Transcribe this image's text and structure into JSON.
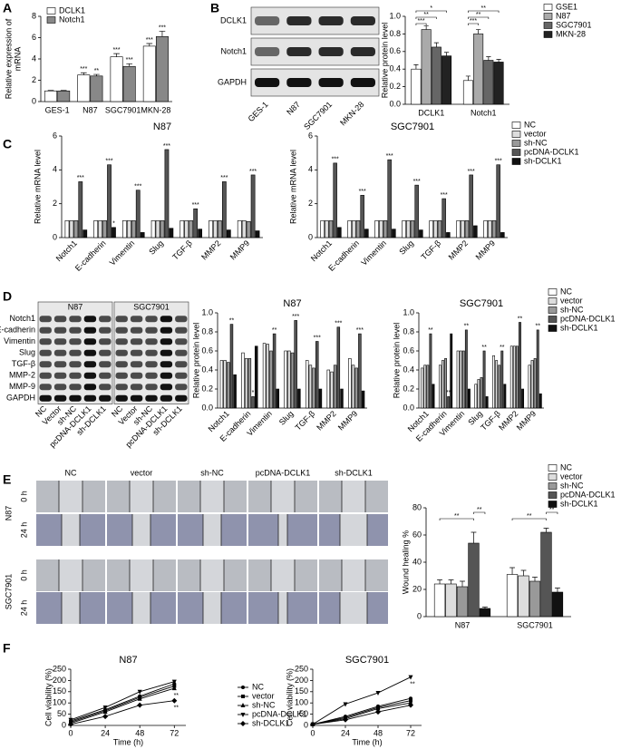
{
  "panels": [
    "A",
    "B",
    "C",
    "D",
    "E",
    "F"
  ],
  "blot_b": {
    "rows": [
      "DCLK1",
      "Notch1",
      "GAPDH"
    ],
    "lanes": [
      "GES-1",
      "N87",
      "SGC7901",
      "MKN-28"
    ]
  },
  "blot_d": {
    "groups": [
      "N87",
      "SGC7901"
    ],
    "rows": [
      "Notch1",
      "E-cadherin",
      "Vimentin",
      "Slug",
      "TGF-β",
      "MMP-2",
      "MMP-9",
      "GAPDH"
    ],
    "lanes": [
      "NC",
      "Vector",
      "sh-NC",
      "pcDNA-DCLK1",
      "sh-DCLK1",
      "NC",
      "Vector",
      "sh-NC",
      "pcDNA-DCLK1",
      "sh-DCLK1"
    ]
  },
  "wound": {
    "columns": [
      "NC",
      "vector",
      "sh-NC",
      "pcDNA-DCLK1",
      "sh-DCLK1"
    ],
    "rows": [
      {
        "cell": "N87",
        "times": [
          "0 h",
          "24 h"
        ]
      },
      {
        "cell": "SGC7901",
        "times": [
          "0 h",
          "24 h"
        ]
      }
    ]
  },
  "chart_data": [
    {
      "type": "bar",
      "ylabel": [
        "Relative expression of",
        "mRNA"
      ],
      "categories": [
        "GES-1",
        "N87",
        "SGC7901",
        "MKN-28"
      ],
      "series": [
        {
          "name": "DCLK1",
          "color": "#ffffff",
          "values": [
            1,
            2.5,
            4.2,
            5.2
          ],
          "errors": [
            0.05,
            0.2,
            0.3,
            0.25
          ],
          "stars": [
            null,
            "***",
            "***",
            "***"
          ]
        },
        {
          "name": "Notch1",
          "color": "#888888",
          "values": [
            1,
            2.4,
            3.3,
            6.1
          ],
          "errors": [
            0.05,
            0.15,
            0.25,
            0.5
          ],
          "stars": [
            null,
            "**",
            "***",
            "***"
          ]
        }
      ],
      "ylim": [
        0,
        8
      ],
      "yticks": [
        0,
        2,
        4,
        6,
        8
      ],
      "legend": "upper left"
    },
    {
      "type": "bar",
      "ylabel": "Relative protein level",
      "categories": [
        "DCLK1",
        "Notch1"
      ],
      "series": [
        {
          "name": "GSE1",
          "color": "#ffffff",
          "values": [
            0.4,
            0.27
          ],
          "errors": [
            0.05,
            0.05
          ]
        },
        {
          "name": "N87",
          "color": "#aaaaaa",
          "values": [
            0.85,
            0.8
          ],
          "errors": [
            0.04,
            0.05
          ]
        },
        {
          "name": "SGC7901",
          "color": "#666666",
          "values": [
            0.65,
            0.5
          ],
          "errors": [
            0.05,
            0.04
          ]
        },
        {
          "name": "MKN-28",
          "color": "#222222",
          "values": [
            0.55,
            0.48
          ],
          "errors": [
            0.04,
            0.03
          ]
        }
      ],
      "brackets": [
        "***",
        "**",
        "*",
        "***",
        "**",
        "**"
      ],
      "ylim": [
        0,
        1
      ],
      "yticks": [
        {
          "value": 0,
          "label": "0.0"
        },
        0.2,
        0.4,
        0.6,
        0.8,
        {
          "value": 1,
          "label": "1.0"
        }
      ],
      "legend": "right"
    },
    {
      "type": "bar",
      "title": "N87",
      "ylabel": "Relative mRNA level",
      "categories": [
        "Notch1",
        "E-cadherin",
        "Vimentin",
        "Slug",
        "TGF-β",
        "MMP2",
        "MMP9"
      ],
      "series": [
        {
          "name": "NC",
          "color": "#ffffff",
          "values": [
            1,
            1,
            1,
            1,
            1,
            1,
            1
          ]
        },
        {
          "name": "vector",
          "color": "#dddddd",
          "values": [
            1,
            1,
            1,
            1,
            1,
            1,
            1
          ]
        },
        {
          "name": "sh-NC",
          "color": "#999999",
          "values": [
            1,
            1,
            1,
            1,
            1,
            1,
            0.95
          ]
        },
        {
          "name": "pcDNA-DCLK1",
          "color": "#555555",
          "values": [
            3.3,
            4.3,
            2.8,
            5.2,
            1.7,
            3.3,
            3.7
          ],
          "stars": [
            "***",
            "***",
            "***",
            "***",
            "***",
            "***",
            "***"
          ]
        },
        {
          "name": "sh-DCLK1",
          "color": "#111111",
          "values": [
            0.45,
            0.6,
            0.3,
            0.55,
            0.5,
            0.45,
            0.4
          ],
          "stars": [
            null,
            "*",
            null,
            null,
            null,
            null,
            null
          ]
        }
      ],
      "ylim": [
        0,
        6
      ],
      "yticks": [
        0,
        2,
        4,
        6
      ]
    },
    {
      "type": "bar",
      "title": "SGC7901",
      "ylabel": "Relative mRNA level",
      "categories": [
        "Notch1",
        "E-cadherin",
        "Vimentin",
        "Slug",
        "TGF-β",
        "MMP2",
        "MMP9"
      ],
      "series": [
        {
          "name": "NC",
          "color": "#ffffff",
          "values": [
            1,
            1,
            1,
            1,
            1,
            1,
            1
          ]
        },
        {
          "name": "vector",
          "color": "#dddddd",
          "values": [
            1,
            1,
            1,
            1,
            1,
            1,
            1
          ]
        },
        {
          "name": "sh-NC",
          "color": "#999999",
          "values": [
            1,
            1,
            1,
            1,
            1,
            1,
            1
          ]
        },
        {
          "name": "pcDNA-DCLK1",
          "color": "#555555",
          "values": [
            4.4,
            2.5,
            4.6,
            3.1,
            2.3,
            3.7,
            4.3
          ],
          "stars": [
            "***",
            "***",
            "***",
            "***",
            "***",
            "***",
            "***"
          ]
        },
        {
          "name": "sh-DCLK1",
          "color": "#111111",
          "values": [
            0.6,
            0.5,
            0.5,
            0.45,
            0.3,
            0.7,
            0.3
          ]
        }
      ],
      "ylim": [
        0,
        6
      ],
      "yticks": [
        0,
        2,
        4,
        6
      ],
      "legend": "right"
    },
    {
      "type": "bar",
      "title": "N87",
      "ylabel": "Relative protein level",
      "categories": [
        "Notch1",
        "E-cadherin",
        "Vimentin",
        "Slug",
        "TGF-β",
        "MMP2",
        "MMP9"
      ],
      "series": [
        {
          "name": "NC",
          "color": "#ffffff",
          "values": [
            0.5,
            0.58,
            0.68,
            0.6,
            0.5,
            0.4,
            0.52
          ]
        },
        {
          "name": "vector",
          "color": "#dddddd",
          "values": [
            0.5,
            0.52,
            0.67,
            0.6,
            0.45,
            0.38,
            0.45
          ]
        },
        {
          "name": "sh-NC",
          "color": "#999999",
          "values": [
            0.48,
            0.52,
            0.6,
            0.58,
            0.42,
            0.45,
            0.42
          ]
        },
        {
          "name": "pcDNA-DCLK1",
          "color": "#555555",
          "values": [
            0.88,
            0.12,
            0.78,
            0.92,
            0.7,
            0.85,
            0.78
          ],
          "stars": [
            "**",
            "*",
            "**",
            "***",
            "***",
            "***",
            "***"
          ]
        },
        {
          "name": "sh-DCLK1",
          "color": "#111111",
          "values": [
            0.35,
            0.65,
            0.2,
            0.2,
            0.2,
            0.2,
            0.18
          ]
        }
      ],
      "ylim": [
        0,
        1
      ],
      "yticks": [
        {
          "value": 0,
          "label": "0.0"
        },
        0.2,
        0.4,
        0.6,
        0.8,
        {
          "value": 1,
          "label": "1.0"
        }
      ]
    },
    {
      "type": "bar",
      "title": "SGC7901",
      "ylabel": "Relative protein level",
      "categories": [
        "Notch1",
        "E-cadherin",
        "Vimentin",
        "Slug",
        "TGF-β",
        "MMP2",
        "MMP9"
      ],
      "series": [
        {
          "name": "NC",
          "color": "#ffffff",
          "values": [
            0.42,
            0.45,
            0.6,
            0.25,
            0.55,
            0.65,
            0.45
          ]
        },
        {
          "name": "vector",
          "color": "#dddddd",
          "values": [
            0.45,
            0.5,
            0.6,
            0.3,
            0.5,
            0.65,
            0.5
          ]
        },
        {
          "name": "sh-NC",
          "color": "#999999",
          "values": [
            0.45,
            0.52,
            0.6,
            0.32,
            0.45,
            0.65,
            0.52
          ]
        },
        {
          "name": "pcDNA-DCLK1",
          "color": "#555555",
          "values": [
            0.78,
            0.12,
            0.82,
            0.6,
            0.6,
            0.9,
            0.82
          ],
          "stars": [
            "**",
            "**",
            "**",
            "**",
            "**",
            "**",
            "**"
          ]
        },
        {
          "name": "sh-DCLK1",
          "color": "#111111",
          "values": [
            0.25,
            0.78,
            0.2,
            0.12,
            0.25,
            0.2,
            0.15
          ]
        }
      ],
      "ylim": [
        0,
        1
      ],
      "yticks": [
        {
          "value": 0,
          "label": "0.0"
        },
        0.2,
        0.4,
        0.6,
        0.8,
        {
          "value": 1,
          "label": "1.0"
        }
      ],
      "legend": "right"
    },
    {
      "type": "bar",
      "ylabel": "Wound healing %",
      "categories": [
        "N87",
        "SGC7901"
      ],
      "series": [
        {
          "name": "NC",
          "color": "#ffffff",
          "values": [
            24,
            31
          ],
          "errors": [
            3,
            5
          ]
        },
        {
          "name": "vector",
          "color": "#dddddd",
          "values": [
            24,
            30
          ],
          "errors": [
            3,
            4
          ]
        },
        {
          "name": "sh-NC",
          "color": "#999999",
          "values": [
            22,
            26
          ],
          "errors": [
            4,
            3
          ]
        },
        {
          "name": "pcDNA-DCLK1",
          "color": "#555555",
          "values": [
            54,
            62
          ],
          "errors": [
            8,
            3
          ]
        },
        {
          "name": "sh-DCLK1",
          "color": "#111111",
          "values": [
            6,
            18
          ],
          "errors": [
            1,
            3
          ]
        }
      ],
      "brackets": [
        "**",
        "**",
        "**",
        "**"
      ],
      "ylim": [
        0,
        80
      ],
      "yticks": [
        0,
        20,
        40,
        60,
        80
      ],
      "legend": "right"
    },
    {
      "type": "line",
      "title": "N87",
      "xlabel": "Time (h)",
      "ylabel": "Cell viability (%)",
      "x": [
        0,
        24,
        48,
        72
      ],
      "series": [
        {
          "name": "NC",
          "color": "#000000",
          "values": [
            20,
            70,
            130,
            185
          ]
        },
        {
          "name": "vector",
          "color": "#000000",
          "values": [
            15,
            65,
            125,
            175
          ]
        },
        {
          "name": "sh-NC",
          "color": "#000000",
          "values": [
            10,
            60,
            118,
            165
          ],
          "stars": [
            null,
            null,
            null,
            "**"
          ]
        },
        {
          "name": "pcDNA-DCLK1",
          "color": "#000000",
          "values": [
            25,
            80,
            150,
            195
          ]
        },
        {
          "name": "sh-DCLK1",
          "color": "#000000",
          "values": [
            5,
            40,
            90,
            110
          ],
          "stars": [
            null,
            null,
            null,
            "**"
          ]
        }
      ],
      "xlim": [
        0,
        80
      ],
      "xticks": [
        0,
        24,
        48,
        72
      ],
      "ylim": [
        0,
        250
      ],
      "yticks": [
        0,
        50,
        100,
        150,
        200,
        250
      ],
      "legend": "right"
    },
    {
      "type": "line",
      "title": "SGC7901",
      "xlabel": "Time (h)",
      "ylabel": "Cell viability (%)",
      "x": [
        0,
        24,
        48,
        72
      ],
      "series": [
        {
          "name": "NC",
          "color": "#000000",
          "values": [
            5,
            40,
            85,
            120
          ]
        },
        {
          "name": "vector",
          "color": "#000000",
          "values": [
            5,
            35,
            80,
            110
          ]
        },
        {
          "name": "sh-NC",
          "color": "#000000",
          "values": [
            5,
            30,
            75,
            100
          ]
        },
        {
          "name": "pcDNA-DCLK1",
          "color": "#000000",
          "values": [
            5,
            95,
            145,
            215
          ],
          "stars": [
            null,
            null,
            null,
            "**"
          ]
        },
        {
          "name": "sh-DCLK1",
          "color": "#000000",
          "values": [
            5,
            25,
            60,
            90
          ]
        }
      ],
      "xlim": [
        0,
        80
      ],
      "xticks": [
        0,
        24,
        48,
        72
      ],
      "ylim": [
        0,
        250
      ],
      "yticks": [
        0,
        50,
        100,
        150,
        200,
        250
      ]
    }
  ]
}
